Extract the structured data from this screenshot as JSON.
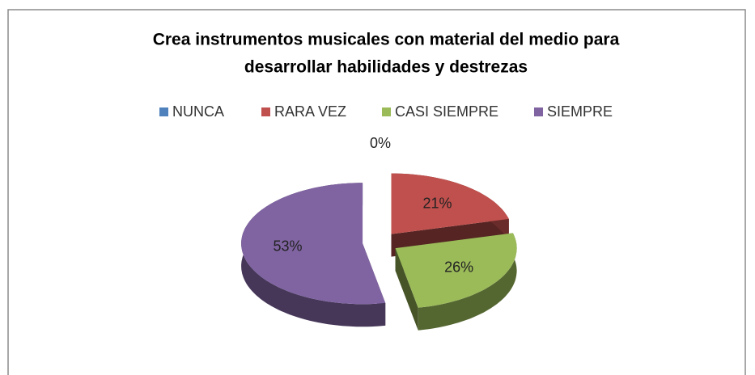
{
  "chart_data": {
    "type": "pie",
    "title": [
      "Crea instrumentos musicales con material del medio para",
      "desarrollar habilidades y destrezas"
    ],
    "categories": [
      "NUNCA",
      "RARA VEZ",
      "CASI SIEMPRE",
      "SIEMPRE"
    ],
    "values": [
      0,
      21,
      26,
      53
    ],
    "value_labels": [
      "0%",
      "21%",
      "26%",
      "53%"
    ],
    "colors": [
      "#4f81bd",
      "#c0504d",
      "#9bbb59",
      "#8064a2"
    ],
    "legend": "top"
  }
}
